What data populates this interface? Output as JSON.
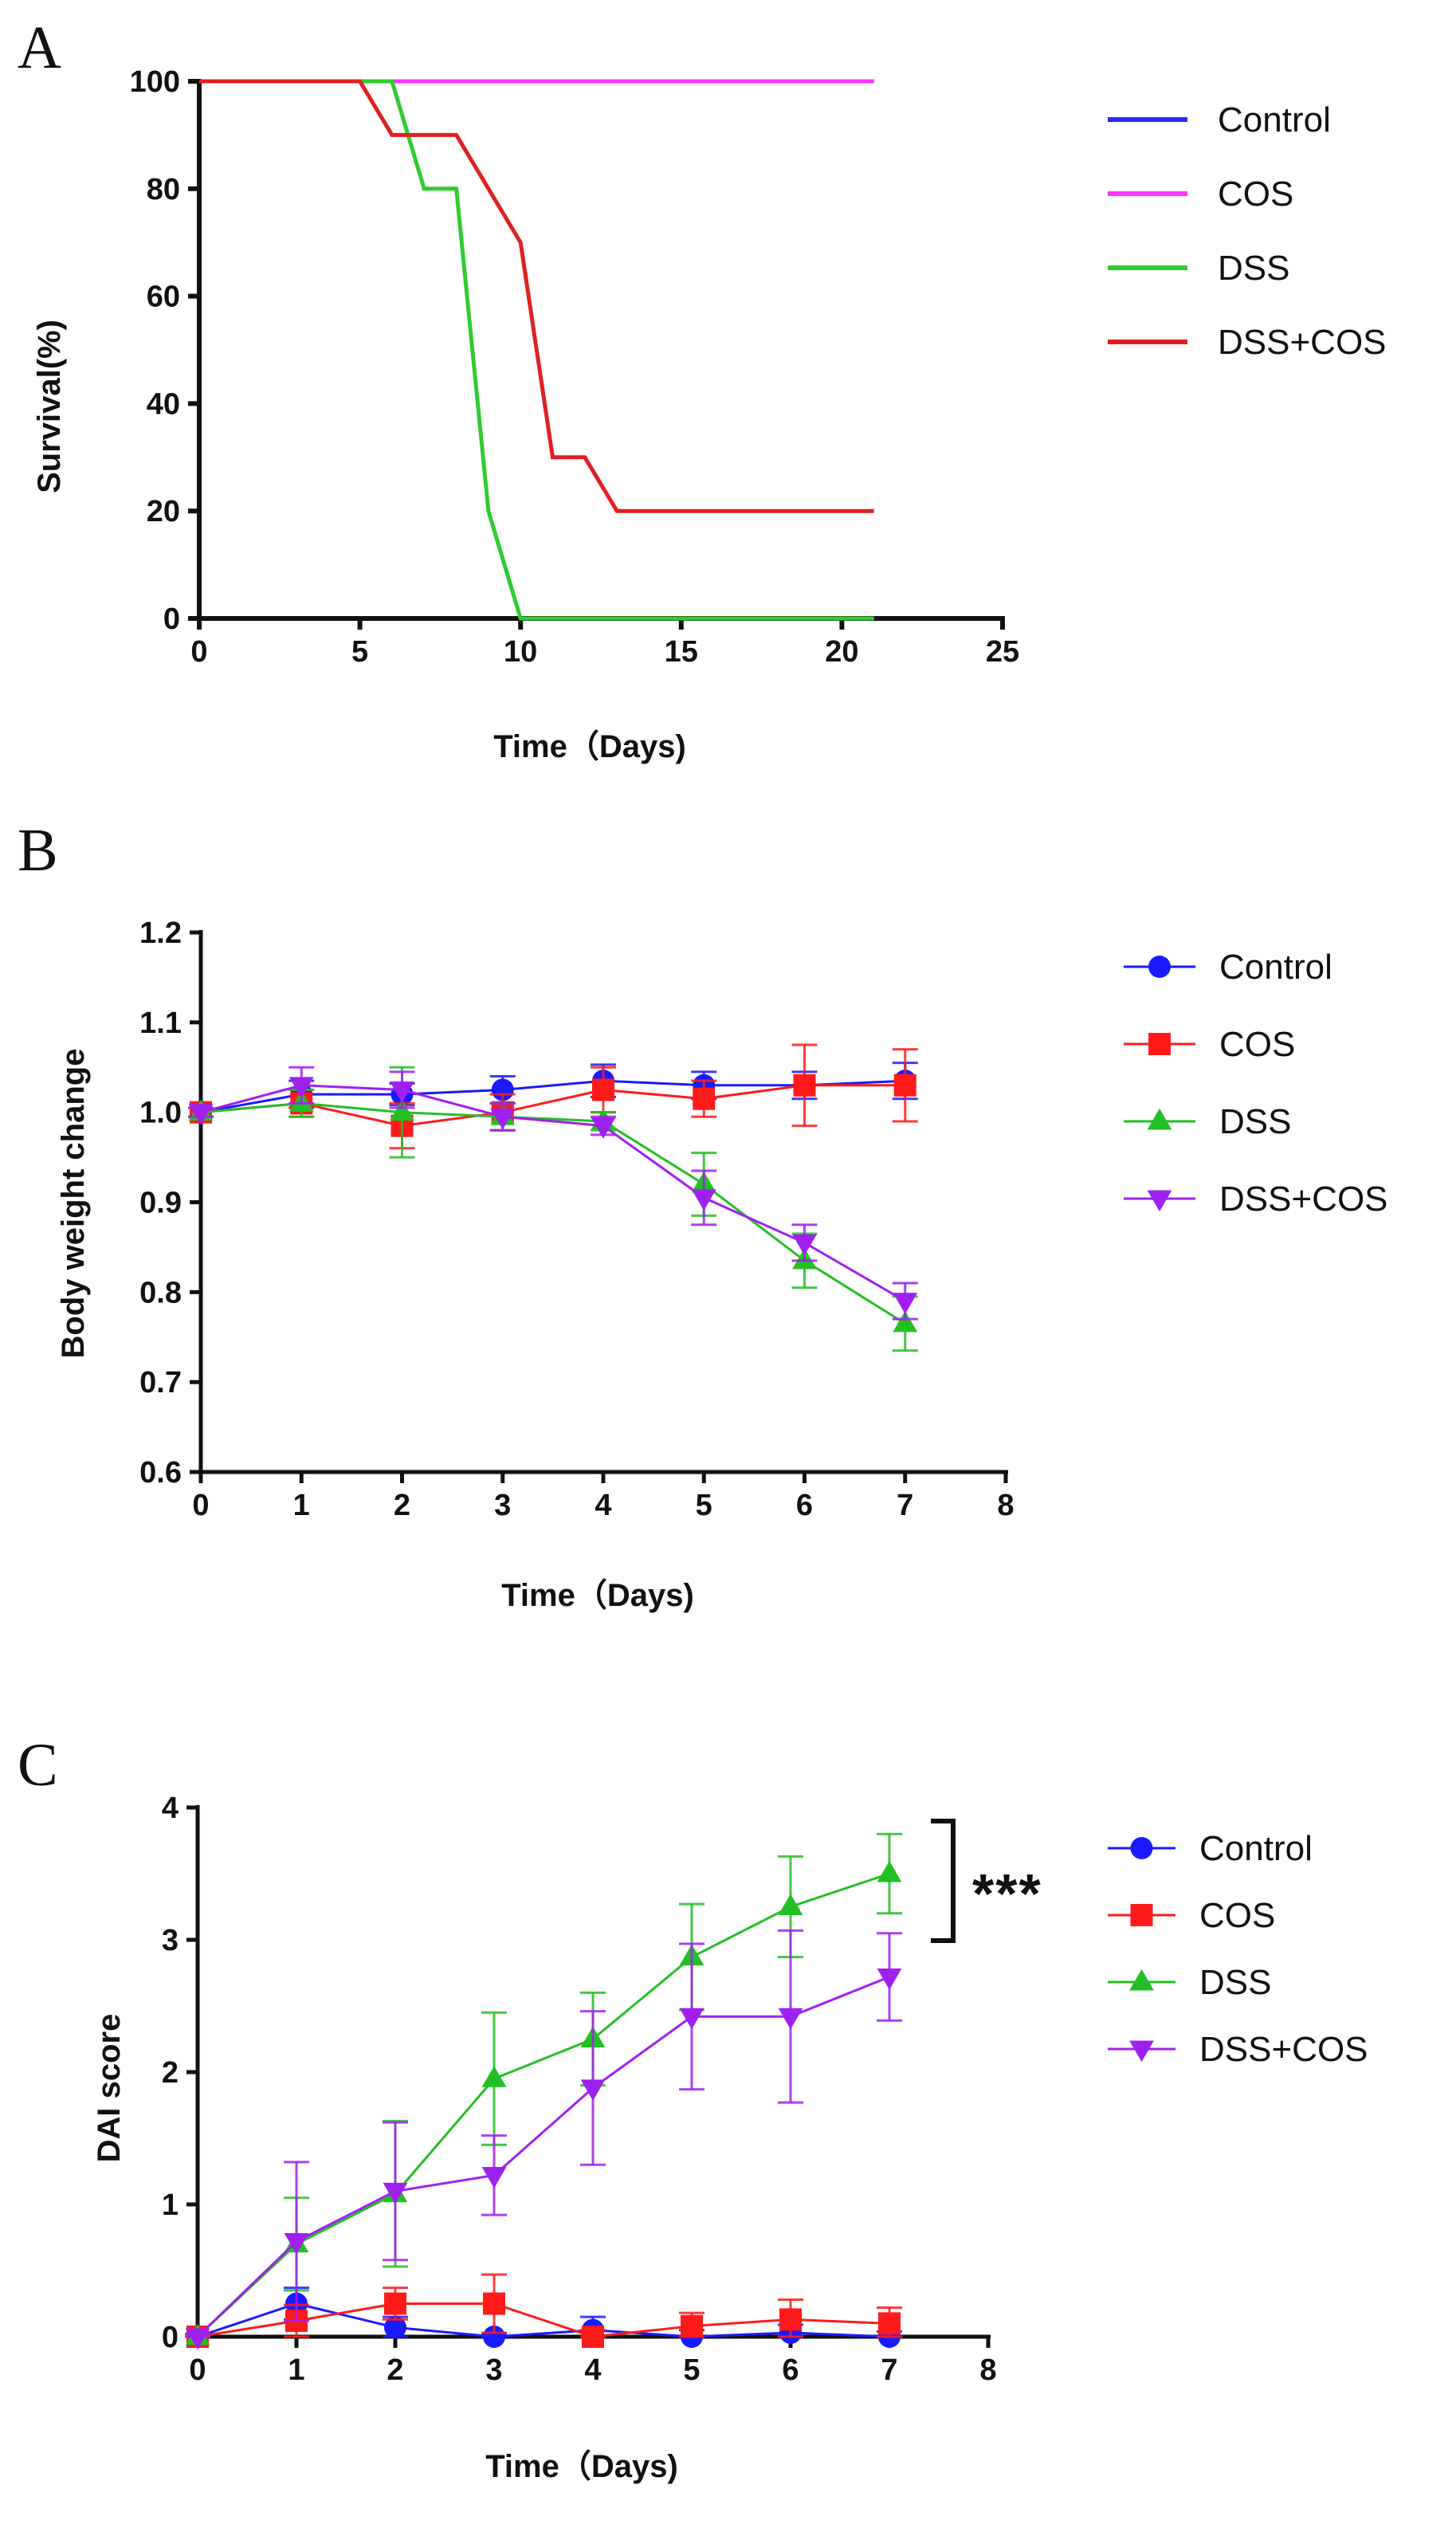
{
  "chart_data": [
    {
      "panel": "A",
      "type": "line",
      "step": true,
      "xlabel": "Time（Days)",
      "ylabel": "Survival(%)",
      "xlim": [
        0,
        25
      ],
      "ylim": [
        0,
        100
      ],
      "xticks": [
        "0",
        "5",
        "10",
        "15",
        "20",
        "25"
      ],
      "yticks": [
        "0",
        "20",
        "40",
        "60",
        "80",
        "100"
      ],
      "legend_position": "right",
      "series": [
        {
          "name": "Control",
          "color": "#2b2bff",
          "points": [
            [
              0,
              100
            ],
            [
              21,
              100
            ]
          ]
        },
        {
          "name": "COS",
          "color": "#ff33ff",
          "points": [
            [
              0,
              100
            ],
            [
              21,
              100
            ]
          ]
        },
        {
          "name": "DSS",
          "color": "#2ecc2e",
          "points": [
            [
              0,
              100
            ],
            [
              6,
              100
            ],
            [
              7,
              80
            ],
            [
              8,
              80
            ],
            [
              9,
              20
            ],
            [
              10,
              0
            ],
            [
              21,
              0
            ]
          ]
        },
        {
          "name": "DSS+COS",
          "color": "#e02020",
          "points": [
            [
              0,
              100
            ],
            [
              5,
              100
            ],
            [
              6,
              90
            ],
            [
              8,
              90
            ],
            [
              10,
              70
            ],
            [
              11,
              30
            ],
            [
              12,
              30
            ],
            [
              13,
              20
            ],
            [
              21,
              20
            ]
          ]
        }
      ]
    },
    {
      "panel": "B",
      "type": "line",
      "xlabel": "Time（Days)",
      "ylabel": "Body weight change",
      "xlim": [
        0,
        8
      ],
      "ylim": [
        0.6,
        1.2
      ],
      "xticks": [
        "0",
        "1",
        "2",
        "3",
        "4",
        "5",
        "6",
        "7",
        "8"
      ],
      "yticks": [
        "0.6",
        "0.7",
        "0.8",
        "0.9",
        "1.0",
        "1.1",
        "1.2"
      ],
      "legend_position": "right",
      "x": [
        0,
        1,
        2,
        3,
        4,
        5,
        6,
        7
      ],
      "series": [
        {
          "name": "Control",
          "color": "#1a1aff",
          "marker": "circle",
          "values": [
            1.0,
            1.02,
            1.02,
            1.025,
            1.035,
            1.03,
            1.03,
            1.035
          ],
          "errors": [
            0.005,
            0.015,
            0.012,
            0.015,
            0.018,
            0.015,
            0.015,
            0.02
          ]
        },
        {
          "name": "COS",
          "color": "#ff1a1a",
          "marker": "square",
          "values": [
            1.0,
            1.01,
            0.985,
            1.0,
            1.025,
            1.015,
            1.03,
            1.03
          ],
          "errors": [
            0.005,
            0.015,
            0.025,
            0.02,
            0.025,
            0.02,
            0.045,
            0.04
          ]
        },
        {
          "name": "DSS",
          "color": "#22c022",
          "marker": "triangle-up",
          "values": [
            1.0,
            1.01,
            1.0,
            0.995,
            0.99,
            0.92,
            0.835,
            0.765
          ],
          "errors": [
            0.005,
            0.015,
            0.05,
            0.015,
            0.01,
            0.035,
            0.03,
            0.03
          ]
        },
        {
          "name": "DSS+COS",
          "color": "#a020f0",
          "marker": "triangle-down",
          "values": [
            1.0,
            1.03,
            1.025,
            0.995,
            0.985,
            0.905,
            0.855,
            0.79
          ],
          "errors": [
            0.005,
            0.02,
            0.02,
            0.015,
            0.01,
            0.03,
            0.02,
            0.02
          ]
        }
      ]
    },
    {
      "panel": "C",
      "type": "line",
      "xlabel": "Time（Days)",
      "ylabel": "DAI score",
      "xlim": [
        0,
        8
      ],
      "ylim": [
        0,
        4
      ],
      "xticks": [
        "0",
        "1",
        "2",
        "3",
        "4",
        "5",
        "6",
        "7",
        "8"
      ],
      "yticks": [
        "0",
        "1",
        "2",
        "3",
        "4"
      ],
      "legend_position": "right",
      "significance": {
        "label": "***",
        "between": [
          "DSS",
          "DSS+COS"
        ],
        "at_x": 7
      },
      "x": [
        0,
        1,
        2,
        3,
        4,
        5,
        6,
        7
      ],
      "series": [
        {
          "name": "Control",
          "color": "#1a1aff",
          "marker": "circle",
          "values": [
            0,
            0.25,
            0.07,
            0,
            0.05,
            0,
            0.03,
            0
          ],
          "errors": [
            0.02,
            0.12,
            0.08,
            0.02,
            0.1,
            0.05,
            0.06,
            0.04
          ]
        },
        {
          "name": "COS",
          "color": "#ff1a1a",
          "marker": "square",
          "values": [
            0,
            0.12,
            0.25,
            0.25,
            0,
            0.08,
            0.13,
            0.1
          ],
          "errors": [
            0.02,
            0.12,
            0.12,
            0.22,
            0.05,
            0.1,
            0.15,
            0.12
          ]
        },
        {
          "name": "DSS",
          "color": "#22c022",
          "marker": "triangle-up",
          "values": [
            0,
            0.7,
            1.08,
            1.95,
            2.25,
            2.87,
            3.25,
            3.5
          ],
          "errors": [
            0.02,
            0.35,
            0.55,
            0.5,
            0.35,
            0.4,
            0.38,
            0.3
          ]
        },
        {
          "name": "DSS+COS",
          "color": "#a020f0",
          "marker": "triangle-down",
          "values": [
            0,
            0.72,
            1.1,
            1.22,
            1.88,
            2.42,
            2.42,
            2.72
          ],
          "errors": [
            0.02,
            0.6,
            0.52,
            0.3,
            0.58,
            0.55,
            0.65,
            0.33
          ]
        }
      ]
    }
  ]
}
